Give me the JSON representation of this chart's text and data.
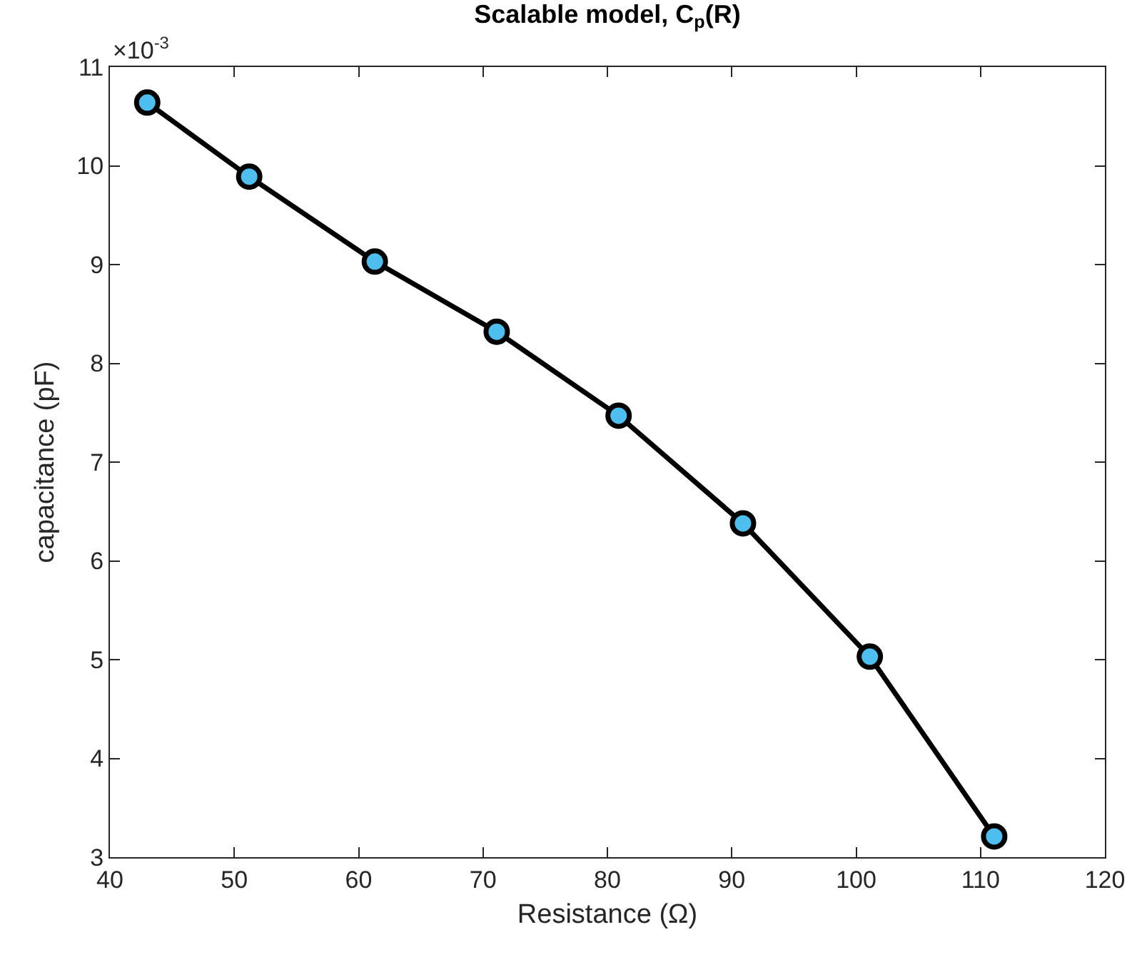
{
  "chart_data": {
    "type": "line",
    "title": "Scalable model, C$_{p}$(R)",
    "xlabel": "Resistance (Ω)",
    "ylabel": "capacitance (pF)",
    "x": [
      43.0,
      51.2,
      61.3,
      71.1,
      80.9,
      90.9,
      101.1,
      111.1
    ],
    "series": [
      {
        "color": "#000000",
        "colors": [
          "#4dbeee",
          "#4dbeee",
          "#4dbeee",
          "#4dbeee",
          "#4dbeee",
          "#4dbeee",
          "#4dbeee",
          "#4dbeee"
        ],
        "values": [
          10.64,
          9.89,
          9.03,
          8.32,
          7.47,
          6.38,
          5.03,
          3.21
        ]
      }
    ],
    "xlim": [
      40,
      120
    ],
    "xticks": [
      40,
      50,
      60,
      70,
      80,
      90,
      100,
      110,
      120
    ],
    "ylim": [
      3,
      11
    ],
    "yticks": [
      3,
      4,
      5,
      6,
      7,
      8,
      9,
      10,
      11
    ],
    "annotations": [
      "×10$^{-3}$"
    ],
    "marker": "circle",
    "line_style": "solid"
  }
}
